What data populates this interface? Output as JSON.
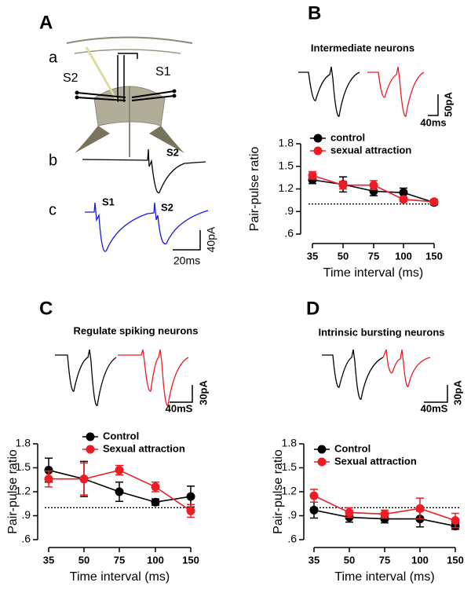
{
  "panel_a": {
    "letter": "A",
    "sub_labels": [
      "a",
      "b",
      "c"
    ],
    "electrode_labels": [
      "S2",
      "S1"
    ],
    "trace_b_label": "S2",
    "trace_c_labels": [
      "S1",
      "S2"
    ],
    "scale_y": "40pA",
    "scale_x": "20ms"
  },
  "chart_data": [
    {
      "type": "line",
      "panel": "B",
      "title": "Intermediate neurons",
      "scale_y": "50pA",
      "scale_x": "40ms",
      "categories": [
        "35",
        "50",
        "75",
        "100",
        "150"
      ],
      "x_label": "Time interval (ms)",
      "y_label": "Pair-pulse ratio",
      "ylim": [
        0.6,
        1.8
      ],
      "yticks": [
        {
          "value": 0.6,
          "label": ".6"
        },
        {
          "value": 0.9,
          "label": ".9"
        },
        1.2,
        1.5,
        1.8
      ],
      "reference_line": 1,
      "series": [
        {
          "name": "control",
          "color": "#000000",
          "values": [
            1.32,
            1.26,
            1.17,
            1.15,
            1.02
          ],
          "errors": [
            0.05,
            0.1,
            0.06,
            0.06,
            0.03
          ]
        },
        {
          "name": "sexual attraction",
          "color": "#ee1c24",
          "values": [
            1.38,
            1.25,
            1.25,
            1.06,
            1.03
          ],
          "errors": [
            0.05,
            0.05,
            0.06,
            0.03,
            0.03
          ]
        }
      ]
    },
    {
      "type": "line",
      "panel": "C",
      "title": "Regulate spiking neurons",
      "scale_y": "30pA",
      "scale_x": "40mS",
      "categories": [
        "35",
        "50",
        "75",
        "100",
        "150"
      ],
      "x_label": "Time interval (ms)",
      "y_label": "Pair-pulse ratio",
      "ylim": [
        0.6,
        1.8
      ],
      "yticks": [
        {
          "value": 0.6,
          "label": ".6"
        },
        {
          "value": 0.9,
          "label": ".9"
        },
        1.2,
        1.5,
        1.8
      ],
      "reference_line": 1,
      "series": [
        {
          "name": "Control",
          "color": "#000000",
          "values": [
            1.47,
            1.36,
            1.2,
            1.07,
            1.14
          ],
          "errors": [
            0.15,
            0.22,
            0.12,
            0.04,
            0.13
          ]
        },
        {
          "name": "Sexual attraction",
          "color": "#ee1c24",
          "values": [
            1.36,
            1.36,
            1.47,
            1.26,
            0.96
          ],
          "errors": [
            0.1,
            0.2,
            0.06,
            0.06,
            0.08
          ]
        }
      ]
    },
    {
      "type": "line",
      "panel": "D",
      "title": "Intrinsic bursting neurons",
      "scale_y": "30pA",
      "scale_x": "40mS",
      "categories": [
        "35",
        "50",
        "75",
        "100",
        "150"
      ],
      "x_label": "Time interval (ms)",
      "y_label": "Pair-pulse ratio",
      "ylim": [
        0.6,
        1.8
      ],
      "yticks": [
        {
          "value": 0.6,
          "label": ".6"
        },
        {
          "value": 0.9,
          "label": ".9"
        },
        1.2,
        1.5,
        1.8
      ],
      "reference_line": 1,
      "series": [
        {
          "name": "Control",
          "color": "#000000",
          "values": [
            0.97,
            0.88,
            0.86,
            0.86,
            0.77
          ],
          "errors": [
            0.1,
            0.06,
            0.05,
            0.1,
            0.04
          ]
        },
        {
          "name": "Sexual attraction",
          "color": "#ee1c24",
          "values": [
            1.15,
            0.94,
            0.92,
            0.99,
            0.84
          ],
          "errors": [
            0.08,
            0.06,
            0.05,
            0.13,
            0.09
          ]
        }
      ]
    }
  ]
}
